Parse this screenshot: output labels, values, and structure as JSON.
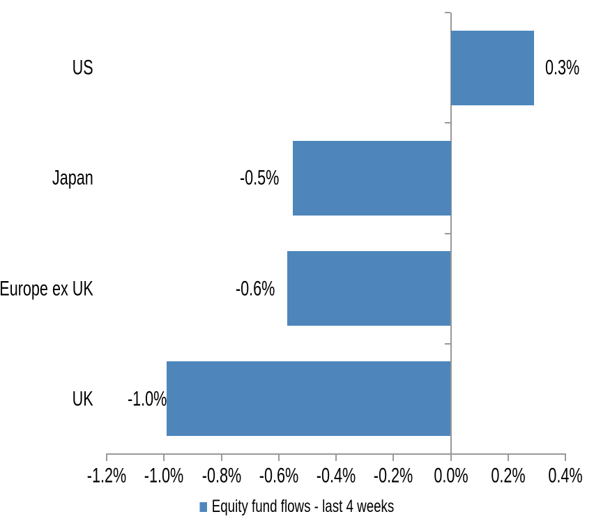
{
  "chart_data": {
    "type": "bar",
    "orientation": "horizontal",
    "title": "",
    "categories": [
      "US",
      "Japan",
      "Europe ex UK",
      "UK"
    ],
    "series": [
      {
        "name": "Equity fund flows - last 4 weeks",
        "values": [
          0.3,
          -0.5,
          -0.6,
          -1.0
        ],
        "value_labels": [
          "0.3%",
          "-0.5%",
          "-0.6%",
          "-1.0%"
        ],
        "bar_extents_pct": [
          0.29,
          -0.55,
          -0.57,
          -0.99
        ]
      }
    ],
    "units": "%",
    "xlabel": "",
    "ylabel": "",
    "xlim": [
      -1.2,
      0.4
    ],
    "x_tick_labels": [
      "-1.2%",
      "-1.0%",
      "-0.8%",
      "-0.6%",
      "-0.4%",
      "-0.2%",
      "0.0%",
      "0.2%",
      "0.4%"
    ],
    "grid": false,
    "data_labels": "outside-end",
    "legend": {
      "position": "bottom",
      "entries": [
        "Equity fund flows - last 4 weeks"
      ]
    },
    "colors": {
      "bar": "#4e86bc",
      "axis": "#999999",
      "text": "#000000",
      "background": "#ffffff"
    }
  }
}
